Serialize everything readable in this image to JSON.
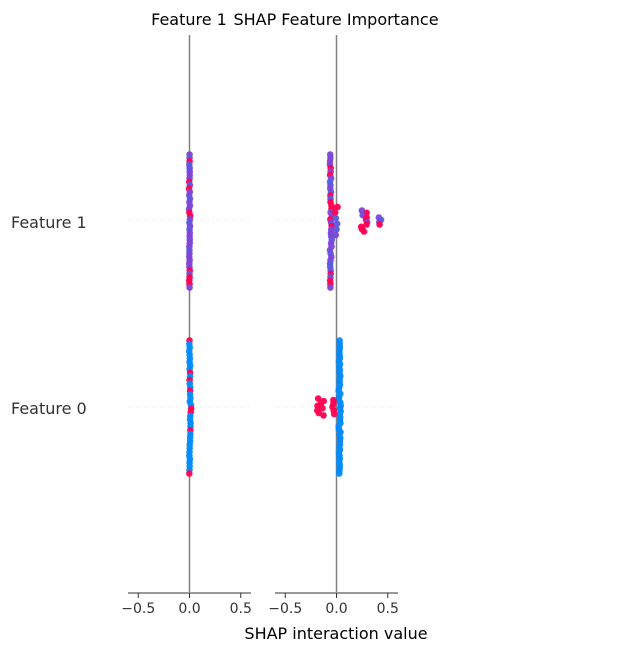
{
  "chart_data": {
    "type": "scatter",
    "subtype": "shap-interaction-beeswarm",
    "xlabel": "SHAP interaction value",
    "x_ticks": [
      -0.5,
      0.0,
      0.5
    ],
    "x_tick_labels": [
      "−0.5",
      "0.0",
      "0.5"
    ],
    "xlim": [
      -0.6,
      0.6
    ],
    "y_categories": [
      "Feature 1",
      "Feature 0"
    ],
    "grid": false,
    "legend": "none",
    "colors": {
      "low": "#008bfb",
      "high": "#ff0052",
      "mid": "#7d45d6",
      "axis_line": "#808080",
      "row_line": "#e9e9e9"
    },
    "panels": [
      {
        "title": "Feature 1",
        "rows": [
          {
            "feature": "Feature 1",
            "clusters": [
              {
                "x": 0.0,
                "spread": 0.008,
                "ymin": -0.95,
                "ymax": 0.95,
                "n": 40,
                "palette": "mixed",
                "bulge": 0
              }
            ]
          },
          {
            "feature": "Feature 0",
            "clusters": [
              {
                "x": 0.0,
                "spread": 0.008,
                "ymin": -0.95,
                "ymax": 0.95,
                "n": 38,
                "palette": "blue_mostly",
                "bulge": 0.02
              }
            ]
          }
        ]
      },
      {
        "title": "SHAP Feature Importance",
        "rows": [
          {
            "feature": "Feature 1",
            "clusters": [
              {
                "x": -0.06,
                "spread": 0.012,
                "ymin": -0.95,
                "ymax": 0.95,
                "n": 40,
                "palette": "mixed",
                "bulge": 0.015
              },
              {
                "x": 0.0,
                "spread": 0.015,
                "ymin": -0.2,
                "ymax": 0.2,
                "n": 6,
                "palette": "mixed",
                "bulge": 0
              },
              {
                "x": 0.27,
                "spread": 0.045,
                "ymin": -0.15,
                "ymax": 0.15,
                "n": 10,
                "palette": "red_mostly",
                "bulge": 0
              },
              {
                "x": 0.43,
                "spread": 0.02,
                "ymin": -0.05,
                "ymax": 0.05,
                "n": 4,
                "palette": "mixed",
                "bulge": 0
              }
            ]
          },
          {
            "feature": "Feature 0",
            "clusters": [
              {
                "x": 0.03,
                "spread": 0.012,
                "ymin": -0.95,
                "ymax": 0.95,
                "n": 46,
                "palette": "blue",
                "bulge": 0
              },
              {
                "x": -0.15,
                "spread": 0.04,
                "ymin": -0.12,
                "ymax": 0.12,
                "n": 8,
                "palette": "red",
                "bulge": 0
              },
              {
                "x": -0.02,
                "spread": 0.02,
                "ymin": -0.1,
                "ymax": 0.1,
                "n": 5,
                "palette": "red",
                "bulge": 0
              }
            ]
          }
        ]
      }
    ]
  }
}
